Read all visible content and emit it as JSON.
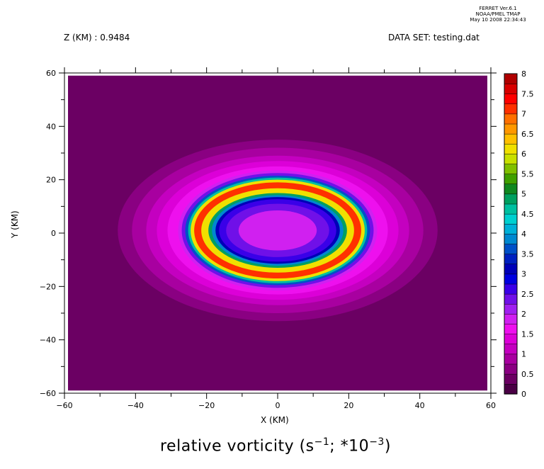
{
  "header": {
    "ferret_line1": "FERRET Ver.6.1",
    "ferret_line2": "NOAA/PMEL TMAP",
    "ferret_line3": "May 10 2008 22:34:43",
    "z_label": "Z (KM) : 0.9484",
    "dataset_label": "DATA SET: testing.dat"
  },
  "chart_data": {
    "type": "heatmap",
    "title_main": "relative vorticity (s",
    "title_exp1": "−1",
    "title_mid": "; *10",
    "title_exp2": "−3",
    "title_end": ")",
    "xlabel": "X (KM)",
    "ylabel": "Y (KM)",
    "xlim": [
      -60,
      60
    ],
    "ylim": [
      -60,
      60
    ],
    "field_extent_x": [
      -59,
      59
    ],
    "field_extent_y": [
      -59,
      59
    ],
    "xticks": [
      "−60",
      "−40",
      "−20",
      "0",
      "20",
      "40",
      "60"
    ],
    "xtick_values": [
      -60,
      -40,
      -20,
      0,
      20,
      40,
      60
    ],
    "yticks": [
      "60",
      "40",
      "20",
      "0",
      "−20",
      "−40",
      "−60"
    ],
    "ytick_values": [
      60,
      40,
      20,
      0,
      -20,
      -40,
      -60
    ],
    "contours": [
      {
        "a": 45,
        "b": 34,
        "level": 0.5
      },
      {
        "a": 41,
        "b": 31,
        "level": 0.75
      },
      {
        "a": 37,
        "b": 28,
        "level": 1.0
      },
      {
        "a": 34,
        "b": 26,
        "level": 1.25
      },
      {
        "a": 31,
        "b": 24,
        "level": 1.5
      },
      {
        "a": 28,
        "b": 22.5,
        "level": 1.75
      },
      {
        "a": 27,
        "b": 21.5,
        "level": 2.25
      },
      {
        "a": 26,
        "b": 20.5,
        "level": 3.5
      },
      {
        "a": 25.2,
        "b": 19.8,
        "level": 4.5
      },
      {
        "a": 24.5,
        "b": 19,
        "level": 6.0
      },
      {
        "a": 23.5,
        "b": 18,
        "level": 7.0
      },
      {
        "a": 21.5,
        "b": 15.8,
        "level": 6.0
      },
      {
        "a": 19.5,
        "b": 14,
        "level": 4.75
      },
      {
        "a": 18.5,
        "b": 13.2,
        "level": 3.75
      },
      {
        "a": 17.5,
        "b": 12.5,
        "level": 3.0
      },
      {
        "a": 16.5,
        "b": 11.7,
        "level": 2.5
      },
      {
        "a": 14.5,
        "b": 10,
        "level": 2.25
      },
      {
        "a": 11,
        "b": 7.5,
        "level": 1.75
      }
    ],
    "background_level": 0.25,
    "colorbar": {
      "labels": [
        "8",
        "7.5",
        "7",
        "6.5",
        "6",
        "5.5",
        "5",
        "4.5",
        "4",
        "3.5",
        "3",
        "2.5",
        "2",
        "1.5",
        "1",
        "0.5",
        "0"
      ],
      "label_values": [
        8,
        7.5,
        7,
        6.5,
        6,
        5.5,
        5,
        4.5,
        4,
        3.5,
        3,
        2.5,
        2,
        1.5,
        1,
        0.5,
        0
      ],
      "colors_bottom_to_top": [
        "#4a0045",
        "#6b0063",
        "#8a0082",
        "#a800a0",
        "#c400c0",
        "#dc00d8",
        "#ee10ee",
        "#d020f0",
        "#a020f0",
        "#7010e8",
        "#3a00e8",
        "#0000e0",
        "#0000b8",
        "#0020c0",
        "#0050c8",
        "#0088d0",
        "#00b0d8",
        "#00d0d0",
        "#00c0a0",
        "#00a060",
        "#108820",
        "#40a000",
        "#80c000",
        "#c8e000",
        "#f0e000",
        "#ffc000",
        "#ff9800",
        "#ff7000",
        "#ff3000",
        "#ff0000",
        "#d80000",
        "#b00000"
      ]
    }
  }
}
